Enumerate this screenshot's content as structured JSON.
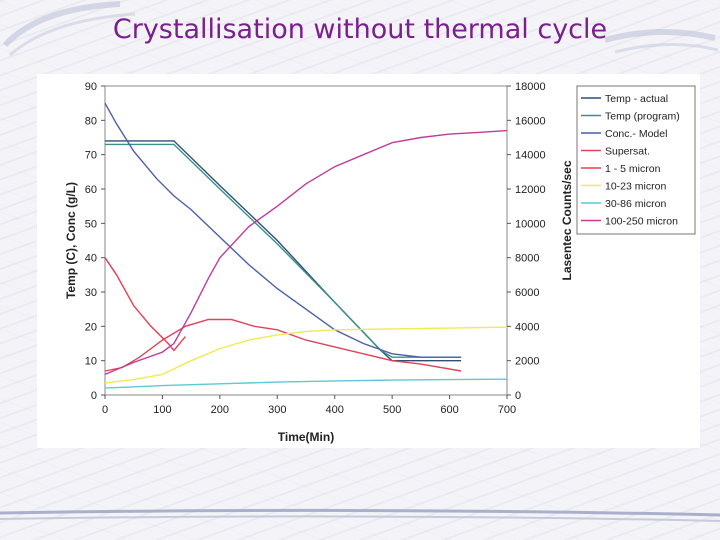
{
  "slide": {
    "title": "Crystallisation without thermal cycle"
  },
  "chart_data": {
    "type": "line",
    "xlabel": "Time(Min)",
    "ylabel_left": "Temp (C), Conc (g/L)",
    "ylabel_right": "Lasentec Counts/sec",
    "xlim": [
      0,
      700
    ],
    "ylim_left": [
      0,
      90
    ],
    "ylim_right": [
      0,
      18000
    ],
    "x_ticks": [
      0,
      100,
      200,
      300,
      400,
      500,
      600,
      700
    ],
    "y_left_ticks": [
      0,
      10,
      20,
      30,
      40,
      50,
      60,
      70,
      80,
      90
    ],
    "y_right_ticks": [
      0,
      2000,
      4000,
      6000,
      8000,
      10000,
      12000,
      14000,
      16000,
      18000
    ],
    "legend_position": "right",
    "series": [
      {
        "name": "Temp - actual",
        "axis": "left",
        "color": "#2f4f78",
        "points": [
          [
            0,
            74
          ],
          [
            120,
            74
          ],
          [
            200,
            61
          ],
          [
            300,
            45
          ],
          [
            400,
            27
          ],
          [
            480,
            13
          ],
          [
            500,
            10
          ],
          [
            520,
            10
          ],
          [
            550,
            10
          ],
          [
            620,
            10
          ]
        ]
      },
      {
        "name": "Temp (program)",
        "axis": "left",
        "color": "#3a8f8c",
        "points": [
          [
            0,
            73
          ],
          [
            120,
            73
          ],
          [
            200,
            60
          ],
          [
            300,
            44
          ],
          [
            400,
            27
          ],
          [
            480,
            13
          ],
          [
            500,
            11
          ],
          [
            620,
            11
          ]
        ]
      },
      {
        "name": "Conc.- Model",
        "axis": "left",
        "color": "#4a5fa8",
        "points": [
          [
            0,
            85
          ],
          [
            20,
            79
          ],
          [
            50,
            71
          ],
          [
            90,
            63
          ],
          [
            120,
            58
          ],
          [
            150,
            54
          ],
          [
            200,
            46
          ],
          [
            250,
            38
          ],
          [
            300,
            31
          ],
          [
            350,
            25
          ],
          [
            400,
            19
          ],
          [
            450,
            15
          ],
          [
            500,
            12
          ],
          [
            550,
            11
          ],
          [
            620,
            11
          ]
        ]
      },
      {
        "name": "Supersat.",
        "axis": "left",
        "color": "#e0435a",
        "points": [
          [
            0,
            7
          ],
          [
            30,
            8
          ],
          [
            60,
            11
          ],
          [
            100,
            16
          ],
          [
            140,
            20
          ],
          [
            180,
            22
          ],
          [
            220,
            22
          ],
          [
            260,
            20
          ],
          [
            300,
            19
          ],
          [
            350,
            16
          ],
          [
            400,
            14
          ],
          [
            450,
            12
          ],
          [
            500,
            10
          ],
          [
            550,
            9
          ],
          [
            620,
            7
          ]
        ]
      },
      {
        "name": "1 - 5 micron",
        "axis": "right",
        "color": "#e3404f",
        "points": [
          [
            0,
            8000
          ],
          [
            20,
            7000
          ],
          [
            50,
            5200
          ],
          [
            80,
            4000
          ],
          [
            110,
            3000
          ],
          [
            120,
            2600
          ],
          [
            140,
            3400
          ]
        ]
      },
      {
        "name": "10-23 micron",
        "axis": "right",
        "color": "#f2ea50",
        "points": [
          [
            0,
            700
          ],
          [
            50,
            900
          ],
          [
            100,
            1200
          ],
          [
            150,
            2000
          ],
          [
            200,
            2700
          ],
          [
            250,
            3200
          ],
          [
            300,
            3500
          ],
          [
            350,
            3700
          ],
          [
            400,
            3800
          ],
          [
            500,
            3850
          ],
          [
            600,
            3900
          ],
          [
            700,
            3950
          ]
        ]
      },
      {
        "name": "30-86 micron",
        "axis": "right",
        "color": "#5fc8d8",
        "points": [
          [
            0,
            400
          ],
          [
            100,
            550
          ],
          [
            200,
            650
          ],
          [
            300,
            750
          ],
          [
            400,
            820
          ],
          [
            500,
            870
          ],
          [
            600,
            900
          ],
          [
            700,
            920
          ]
        ]
      },
      {
        "name": "100-250 micron",
        "axis": "right",
        "color": "#c23b9a",
        "points": [
          [
            0,
            1200
          ],
          [
            50,
            1900
          ],
          [
            100,
            2500
          ],
          [
            120,
            3000
          ],
          [
            150,
            4800
          ],
          [
            180,
            6800
          ],
          [
            200,
            8000
          ],
          [
            250,
            9800
          ],
          [
            300,
            11000
          ],
          [
            350,
            12300
          ],
          [
            400,
            13300
          ],
          [
            450,
            14000
          ],
          [
            500,
            14700
          ],
          [
            550,
            15000
          ],
          [
            600,
            15200
          ],
          [
            650,
            15300
          ],
          [
            700,
            15400
          ]
        ]
      }
    ]
  }
}
